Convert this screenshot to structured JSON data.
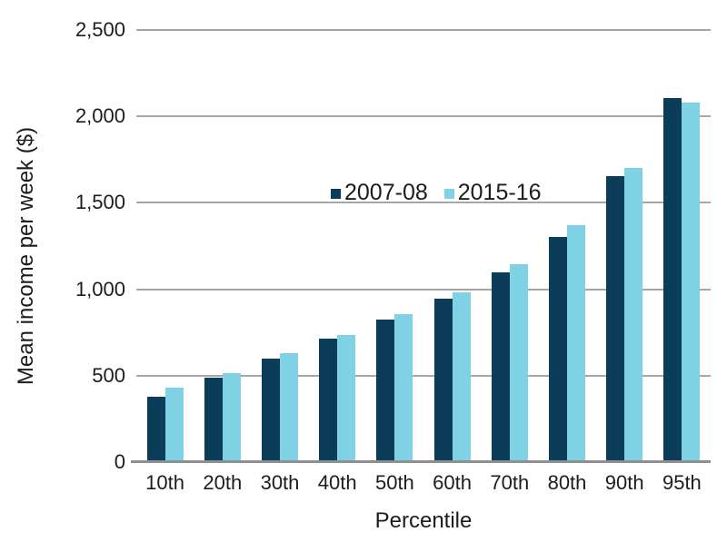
{
  "chart_data": {
    "type": "bar",
    "title": "",
    "xlabel": "Percentile",
    "ylabel": "Mean income per week ($)",
    "categories": [
      "10th",
      "20th",
      "30th",
      "40th",
      "50th",
      "60th",
      "70th",
      "80th",
      "90th",
      "95th"
    ],
    "series": [
      {
        "name": "2007-08",
        "color": "#0b3c58",
        "values": [
          380,
          490,
          600,
          715,
          825,
          945,
          1100,
          1305,
          1655,
          2105
        ]
      },
      {
        "name": "2015-16",
        "color": "#7fd2e4",
        "values": [
          430,
          515,
          630,
          735,
          855,
          980,
          1145,
          1370,
          1700,
          2080
        ]
      }
    ],
    "ylim": [
      0,
      2500
    ],
    "ytick_interval": 500,
    "ytick_labels": [
      "0",
      "500",
      "1,000",
      "1,500",
      "2,000",
      "2,500"
    ],
    "grid": true,
    "legend_position": "inside-upper-left"
  },
  "colors": {
    "gridline": "#a6a6a6",
    "axis_line": "#8f8f8f",
    "text": "#1c1c1c",
    "background": "#ffffff"
  }
}
